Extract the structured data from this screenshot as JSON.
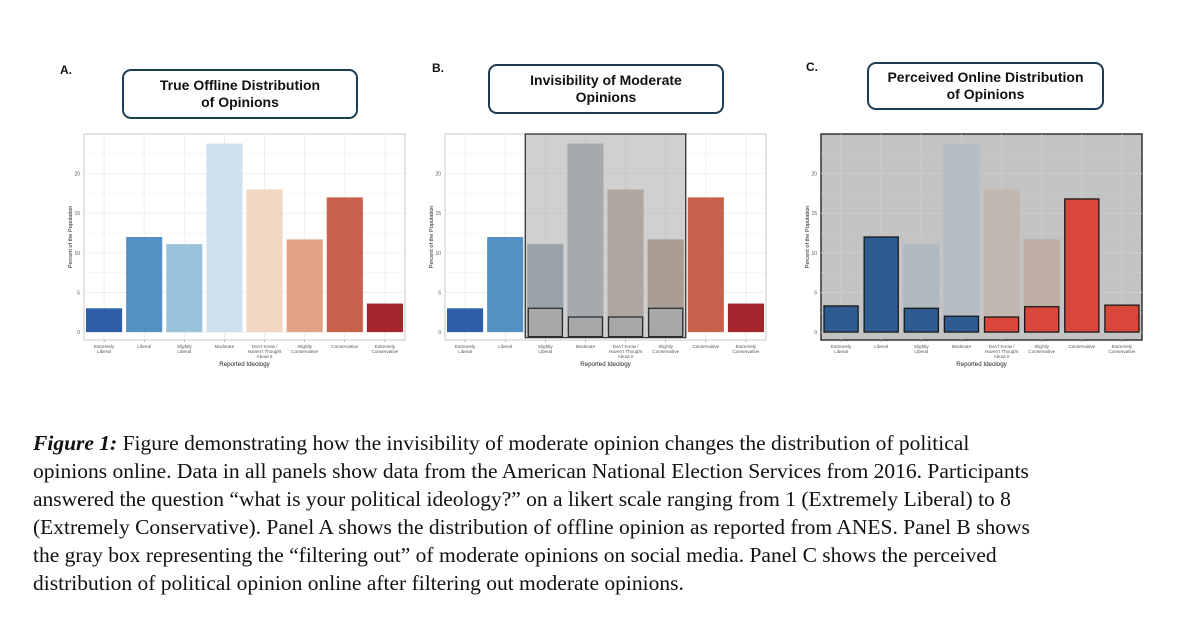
{
  "panels": [
    {
      "letter": "A.",
      "title_lines": [
        "True Offline Distribution",
        "of Opinions"
      ]
    },
    {
      "letter": "B.",
      "title_lines": [
        "Invisibility of Moderate",
        "Opinions"
      ]
    },
    {
      "letter": "C.",
      "title_lines": [
        "Perceived Online Distribution",
        "of Opinions"
      ]
    }
  ],
  "chart_data": [
    {
      "type": "bar",
      "panel": "A",
      "title": "True Offline Distribution of Opinions",
      "xlabel": "Reported Ideology",
      "ylabel": "Percent of the Population",
      "ylim": [
        -1,
        25
      ],
      "yticks": [
        0,
        5,
        10,
        15,
        20
      ],
      "categories": [
        [
          "Extremely",
          "Liberal"
        ],
        [
          "Liberal"
        ],
        [
          "Slightly",
          "Liberal"
        ],
        [
          "Moderate"
        ],
        [
          "Don't Know /",
          "Haven't Thought",
          "About It"
        ],
        [
          "Slightly",
          "Conservative"
        ],
        [
          "Conservative"
        ],
        [
          "Extremely",
          "Conservative"
        ]
      ],
      "values": [
        3.0,
        12.0,
        11.1,
        23.8,
        18.0,
        11.7,
        17.0,
        3.6
      ],
      "colors": [
        "#2f5ea8",
        "#5490c4",
        "#9bc3dc",
        "#cfe0ee",
        "#f3d6c3",
        "#e3a284",
        "#c8614b",
        "#a3262c"
      ]
    },
    {
      "type": "bar",
      "panel": "B",
      "title": "Invisibility of Moderate Opinions",
      "xlabel": "Reported Ideology",
      "ylabel": "Percent of the Population",
      "ylim": [
        -1,
        25
      ],
      "yticks": [
        0,
        5,
        10,
        15,
        20
      ],
      "categories": [
        [
          "Extremely",
          "Liberal"
        ],
        [
          "Liberal"
        ],
        [
          "Slightly",
          "Liberal"
        ],
        [
          "Moderate"
        ],
        [
          "Don't Know /",
          "Haven't Thought",
          "About It"
        ],
        [
          "Slightly",
          "Conservative"
        ],
        [
          "Conservative"
        ],
        [
          "Extremely",
          "Conservative"
        ]
      ],
      "values": [
        3.0,
        12.0,
        11.1,
        23.8,
        18.0,
        11.7,
        17.0,
        3.6
      ],
      "colors": [
        "#2f5ea8",
        "#5490c4",
        "#9bc3dc",
        "#cfe0ee",
        "#f3d6c3",
        "#e3a284",
        "#c8614b",
        "#a3262c"
      ],
      "filtered_range": [
        2,
        5
      ],
      "visible_values": [
        3.0,
        12.0,
        3.0,
        1.9,
        1.9,
        3.0,
        17.0,
        3.6
      ]
    },
    {
      "type": "bar",
      "panel": "C",
      "title": "Perceived Online Distribution of Opinions",
      "xlabel": "Reported Ideology",
      "ylabel": "Percent of the Population",
      "ylim": [
        -1,
        25
      ],
      "yticks": [
        0,
        5,
        10,
        15,
        20
      ],
      "categories": [
        [
          "Extremely",
          "Liberal"
        ],
        [
          "Liberal"
        ],
        [
          "Slightly",
          "Liberal"
        ],
        [
          "Moderate"
        ],
        [
          "Don't Know /",
          "Haven't Thought",
          "About It"
        ],
        [
          "Slightly",
          "Conservative"
        ],
        [
          "Conservative"
        ],
        [
          "Extremely",
          "Conservative"
        ]
      ],
      "background_values": [
        0,
        0,
        11.1,
        23.8,
        18.0,
        11.7,
        0,
        0
      ],
      "values": [
        3.3,
        12.0,
        3.0,
        2.0,
        1.9,
        3.2,
        16.8,
        3.4
      ],
      "colors": [
        "#2e5b90",
        "#2e5b90",
        "#2e5b90",
        "#2e5b90",
        "#d9473a",
        "#d9473a",
        "#d9473a",
        "#d9473a"
      ]
    }
  ],
  "caption": {
    "label": "Figure 1:",
    "lines": [
      " Figure demonstrating  how the invisibility of moderate opinion changes the distribution of political",
      "opinions online. Data in all panels show data from the American National Election Services from 2016. Participants",
      "answered the question “what is your political ideology?” on a likert scale ranging from 1 (Extremely Liberal) to 8",
      "(Extremely Conservative). Panel A shows the distribution of offline opinion as reported from ANES. Panel B shows",
      "the gray box representing the “filtering out” of moderate opinions on social media. Panel C shows the perceived",
      "distribution of political opinion online after filtering out moderate opinions."
    ]
  }
}
